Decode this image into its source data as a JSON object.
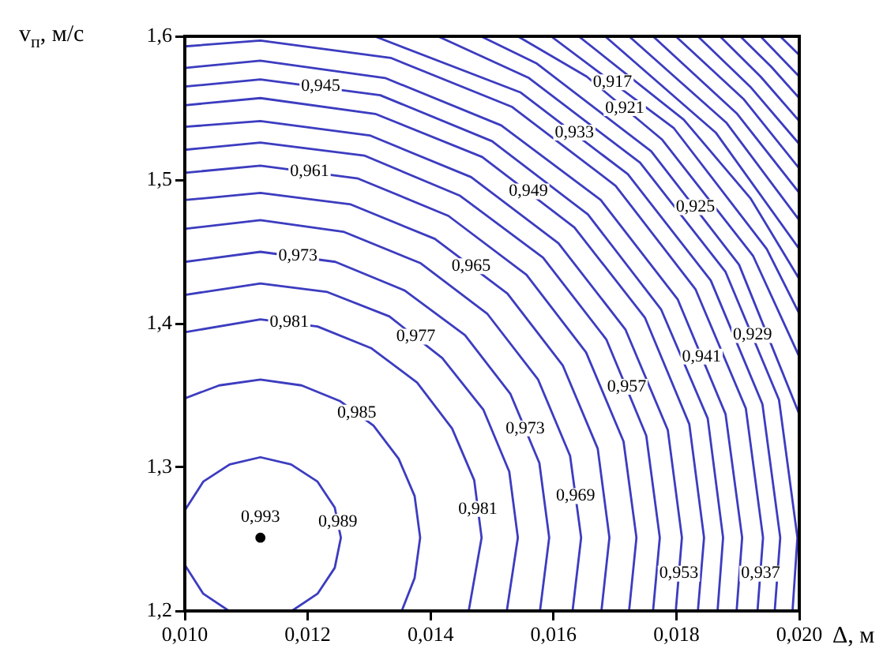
{
  "chart_data": {
    "type": "line",
    "xlabel": "Δ, м",
    "ylabel": "v$_{п}$, м/с",
    "marker": "none",
    "xlim": [
      0.01,
      0.02
    ],
    "ylim": [
      1.2,
      1.6
    ],
    "xticks": [
      {
        "value": 0.01,
        "label": "0,010"
      },
      {
        "value": 0.012,
        "label": "0,012"
      },
      {
        "value": 0.014,
        "label": "0,014"
      },
      {
        "value": 0.016,
        "label": "0,016"
      },
      {
        "value": 0.018,
        "label": "0,018"
      },
      {
        "value": 0.02,
        "label": "0,020"
      }
    ],
    "yticks": [
      {
        "value": 1.2,
        "label": "1,2"
      },
      {
        "value": 1.3,
        "label": "1,3"
      },
      {
        "value": 1.4,
        "label": "1,4"
      },
      {
        "value": 1.5,
        "label": "1,5"
      },
      {
        "value": 1.6,
        "label": "1,6"
      }
    ],
    "series": [
      {
        "color": "#3c3cc0",
        "x": [
          0.01174,
          0.01216,
          0.01244,
          0.01254,
          0.01244,
          0.01216,
          0.01173,
          0.01123,
          0.01073,
          0.0103,
          0.01
        ],
        "values": [
          1.2,
          1.212,
          1.23,
          1.251,
          1.272,
          1.29,
          1.302,
          1.307,
          1.302,
          1.29,
          1.27
        ]
      },
      {
        "color": "#3c3cc0",
        "x": [
          0.01,
          0.0103,
          0.01072
        ],
        "values": [
          1.232,
          1.212,
          1.2
        ]
      },
      {
        "color": "#3c3cc0",
        "x": [
          0.01353,
          0.01374,
          0.01383,
          0.01374,
          0.01348,
          0.01307,
          0.01253,
          0.0119,
          0.01123,
          0.01056,
          0.01
        ],
        "values": [
          1.2,
          1.223,
          1.251,
          1.28,
          1.306,
          1.329,
          1.346,
          1.357,
          1.361,
          1.357,
          1.348
        ]
      },
      {
        "color": "#3c3cc0",
        "x": [
          0.01462,
          0.01483,
          0.01471,
          0.01435,
          0.01378,
          0.01303,
          0.01216,
          0.01123,
          0.01
        ],
        "values": [
          1.2,
          1.251,
          1.291,
          1.327,
          1.359,
          1.383,
          1.398,
          1.403,
          1.394
        ]
      },
      {
        "color": "#3c3cc0",
        "x": [
          0.01524,
          0.01542,
          0.01528,
          0.01486,
          0.01419,
          0.01333,
          0.01232,
          0.01123,
          0.01
        ],
        "values": [
          1.2,
          1.251,
          1.297,
          1.34,
          1.376,
          1.405,
          1.422,
          1.428,
          1.42
        ]
      },
      {
        "color": "#3c3cc0",
        "x": [
          0.01578,
          0.01593,
          0.01577,
          0.0153,
          0.01456,
          0.01358,
          0.01245,
          0.01123,
          0.01
        ],
        "values": [
          1.2,
          1.251,
          1.303,
          1.351,
          1.392,
          1.423,
          1.443,
          1.45,
          1.443
        ]
      },
      {
        "color": "#3c3cc0",
        "x": [
          0.01631,
          0.01645,
          0.01627,
          0.01575,
          0.01492,
          0.01384,
          0.01258,
          0.01123,
          0.01
        ],
        "values": [
          1.2,
          1.251,
          1.308,
          1.361,
          1.407,
          1.442,
          1.464,
          1.472,
          1.466
        ]
      },
      {
        "color": "#3c3cc0",
        "x": [
          0.01678,
          0.01691,
          0.01672,
          0.01615,
          0.01525,
          0.01407,
          0.0127,
          0.01123,
          0.01
        ],
        "values": [
          1.2,
          1.251,
          1.313,
          1.371,
          1.421,
          1.459,
          1.483,
          1.491,
          1.486
        ]
      },
      {
        "color": "#3c3cc0",
        "x": [
          0.01723,
          0.01735,
          0.01714,
          0.01653,
          0.01556,
          0.01429,
          0.01282,
          0.01123,
          0.01
        ],
        "values": [
          1.2,
          1.251,
          1.318,
          1.38,
          1.434,
          1.475,
          1.501,
          1.51,
          1.505
        ]
      },
      {
        "color": "#3c3cc0",
        "x": [
          0.01762,
          0.01773,
          0.01751,
          0.01686,
          0.01583,
          0.01448,
          0.01292,
          0.01123,
          0.01
        ],
        "values": [
          1.2,
          1.251,
          1.322,
          1.389,
          1.446,
          1.489,
          1.517,
          1.526,
          1.521
        ]
      },
      {
        "color": "#3c3cc0",
        "x": [
          0.01799,
          0.01809,
          0.01786,
          0.01717,
          0.01608,
          0.01466,
          0.01301,
          0.01123,
          0.01
        ],
        "values": [
          1.2,
          1.251,
          1.326,
          1.396,
          1.456,
          1.502,
          1.531,
          1.541,
          1.537
        ]
      },
      {
        "color": "#3c3cc0",
        "x": [
          0.01835,
          0.01845,
          0.01821,
          0.01749,
          0.01634,
          0.01484,
          0.0131,
          0.01123,
          0.01
        ],
        "values": [
          1.2,
          1.251,
          1.33,
          1.404,
          1.467,
          1.516,
          1.546,
          1.557,
          1.552
        ]
      },
      {
        "color": "#3c3cc0",
        "x": [
          0.01867,
          0.01876,
          0.01851,
          0.01775,
          0.01656,
          0.015,
          0.01318,
          0.01123,
          0.01
        ],
        "values": [
          1.2,
          1.251,
          1.334,
          1.41,
          1.476,
          1.527,
          1.559,
          1.57,
          1.565
        ]
      },
      {
        "color": "#3c3cc0",
        "x": [
          0.01898,
          0.01907,
          0.0188,
          0.01802,
          0.01677,
          0.01515,
          0.01326,
          0.01123,
          0.01
        ],
        "values": [
          1.2,
          1.251,
          1.337,
          1.417,
          1.486,
          1.538,
          1.571,
          1.583,
          1.578
        ]
      },
      {
        "color": "#3c3cc0",
        "x": [
          0.01932,
          0.01941,
          0.01913,
          0.01831,
          0.01701,
          0.01532,
          0.01335,
          0.01123,
          0.01
        ],
        "values": [
          1.2,
          1.251,
          1.341,
          1.424,
          1.496,
          1.551,
          1.585,
          1.597,
          1.593
        ]
      },
      {
        "color": "#3c3cc0",
        "x": [
          0.0196,
          0.01969,
          0.0194,
          0.01856,
          0.01721,
          0.01546,
          0.01309
        ],
        "values": [
          1.2,
          1.251,
          1.344,
          1.43,
          1.504,
          1.561,
          1.6
        ]
      },
      {
        "color": "#3c3cc0",
        "x": [
          0.01989,
          0.01997,
          0.01967,
          0.0188,
          0.01741,
          0.0156,
          0.01412
        ],
        "values": [
          1.2,
          1.251,
          1.347,
          1.436,
          1.512,
          1.571,
          1.6
        ]
      },
      {
        "color": "#3c3cc0",
        "x": [
          0.02,
          0.01902,
          0.01759,
          0.01573,
          0.01482
        ],
        "values": [
          1.337,
          1.441,
          1.52,
          1.581,
          1.6
        ]
      },
      {
        "color": "#3c3cc0",
        "x": [
          0.02,
          0.01925,
          0.01777,
          0.01654,
          0.01542
        ],
        "values": [
          1.377,
          1.447,
          1.528,
          1.572,
          1.6
        ]
      },
      {
        "color": "#3c3cc0",
        "x": [
          0.02,
          0.01947,
          0.01796,
          0.01596
        ],
        "values": [
          1.407,
          1.452,
          1.536,
          1.6
        ]
      },
      {
        "color": "#3c3cc0",
        "x": [
          0.02,
          0.01921,
          0.01812,
          0.01641
        ],
        "values": [
          1.431,
          1.487,
          1.542,
          1.6
        ]
      },
      {
        "color": "#3c3cc0",
        "x": [
          0.02,
          0.01864,
          0.01684
        ],
        "values": [
          1.452,
          1.533,
          1.6
        ]
      },
      {
        "color": "#3c3cc0",
        "x": [
          0.02,
          0.01881,
          0.01723
        ],
        "values": [
          1.472,
          1.54,
          1.6
        ]
      },
      {
        "color": "#3c3cc0",
        "x": [
          0.02,
          0.01899,
          0.01762
        ],
        "values": [
          1.491,
          1.546,
          1.6
        ]
      },
      {
        "color": "#3c3cc0",
        "x": [
          0.02,
          0.0191,
          0.01799
        ],
        "values": [
          1.508,
          1.556,
          1.6
        ]
      },
      {
        "color": "#3c3cc0",
        "x": [
          0.02,
          0.0192,
          0.01835
        ],
        "values": [
          1.525,
          1.565,
          1.6
        ]
      },
      {
        "color": "#3c3cc0",
        "x": [
          0.02,
          0.01937,
          0.01871
        ],
        "values": [
          1.541,
          1.572,
          1.6
        ]
      },
      {
        "color": "#3c3cc0",
        "x": [
          0.02,
          0.01954,
          0.01904
        ],
        "values": [
          1.557,
          1.579,
          1.6
        ]
      },
      {
        "color": "#3c3cc0",
        "x": [
          0.02,
          0.01937
        ],
        "values": [
          1.572,
          1.6
        ]
      },
      {
        "color": "#3c3cc0",
        "x": [
          0.02,
          0.01969
        ],
        "values": [
          1.587,
          1.6
        ]
      },
      {
        "type": "scatter",
        "marker": "circle",
        "color": "#000000",
        "x": [
          0.01123
        ],
        "values": [
          1.251
        ]
      }
    ],
    "annotations": [
      {
        "text": "0,993",
        "x": 0.01123,
        "y": 1.251
      },
      {
        "text": "0,989",
        "x": 0.01249,
        "y": 1.262
      },
      {
        "text": "0,985",
        "x": 0.0128,
        "y": 1.338
      },
      {
        "text": "0,981",
        "x": 0.0117,
        "y": 1.401
      },
      {
        "text": "0,981",
        "x": 0.01477,
        "y": 1.271
      },
      {
        "text": "0,977",
        "x": 0.01376,
        "y": 1.391
      },
      {
        "text": "0,973",
        "x": 0.01184,
        "y": 1.447
      },
      {
        "text": "0,973",
        "x": 0.01554,
        "y": 1.327
      },
      {
        "text": "0,969",
        "x": 0.01636,
        "y": 1.28
      },
      {
        "text": "0,965",
        "x": 0.01466,
        "y": 1.44
      },
      {
        "text": "0,961",
        "x": 0.01203,
        "y": 1.506
      },
      {
        "text": "0,957",
        "x": 0.01719,
        "y": 1.356
      },
      {
        "text": "0,953",
        "x": 0.01804,
        "y": 1.226
      },
      {
        "text": "0,949",
        "x": 0.01559,
        "y": 1.492
      },
      {
        "text": "0,945",
        "x": 0.01221,
        "y": 1.565
      },
      {
        "text": "0,941",
        "x": 0.01841,
        "y": 1.377
      },
      {
        "text": "0,937",
        "x": 0.01937,
        "y": 1.226
      },
      {
        "text": "0,933",
        "x": 0.01634,
        "y": 1.533
      },
      {
        "text": "0,929",
        "x": 0.01924,
        "y": 1.392
      },
      {
        "text": "0,925",
        "x": 0.01831,
        "y": 1.481
      },
      {
        "text": "0,921",
        "x": 0.01716,
        "y": 1.55
      },
      {
        "text": "0,917",
        "x": 0.01696,
        "y": 1.568
      }
    ]
  }
}
